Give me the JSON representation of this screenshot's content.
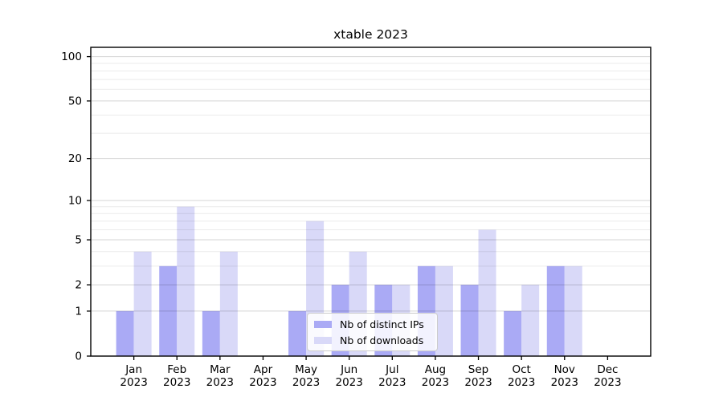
{
  "title": "xtable 2023",
  "legend": {
    "items": [
      {
        "label": "Nb of distinct IPs",
        "color": "#aaaaf5"
      },
      {
        "label": "Nb of downloads",
        "color": "#d9d9f8"
      }
    ]
  },
  "chart_data": {
    "type": "bar",
    "title": "xtable 2023",
    "categories": [
      "Jan 2023",
      "Feb 2023",
      "Mar 2023",
      "Apr 2023",
      "May 2023",
      "Jun 2023",
      "Jul 2023",
      "Aug 2023",
      "Sep 2023",
      "Oct 2023",
      "Nov 2023",
      "Dec 2023"
    ],
    "series": [
      {
        "name": "Nb of distinct IPs",
        "color": "#aaaaf5",
        "values": [
          1,
          3,
          1,
          0,
          1,
          2,
          2,
          3,
          2,
          1,
          3,
          0
        ]
      },
      {
        "name": "Nb of downloads",
        "color": "#d9d9f8",
        "values": [
          4,
          9,
          4,
          0,
          7,
          4,
          2,
          3,
          6,
          2,
          3,
          0
        ]
      }
    ],
    "yscale": "log1p",
    "ylim": [
      0,
      115
    ],
    "yticks_major": [
      0,
      1,
      2,
      5,
      10,
      20,
      50,
      100
    ],
    "yticks_minor": [
      3,
      4,
      6,
      7,
      8,
      9,
      30,
      40,
      60,
      70,
      80,
      90
    ],
    "grid": true,
    "legend_position": "lower center"
  },
  "colors": {
    "background": "#ffffff",
    "frame": "#000000",
    "grid_major": "rgba(0,0,0,0.17)",
    "grid_minor": "rgba(0,0,0,0.08)",
    "tick": "#000000",
    "tick_label": "#000000"
  }
}
